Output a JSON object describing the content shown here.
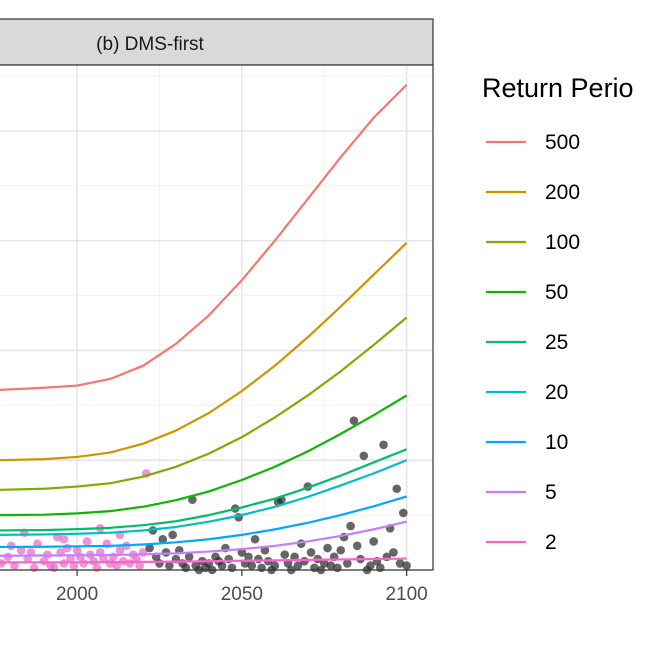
{
  "chart_data": {
    "type": "line",
    "facet_label": "(b) DMS-first",
    "x_ticks": [
      2000,
      2050,
      2100
    ],
    "xlim": [
      1976,
      2108
    ],
    "ylim": [
      0,
      23
    ],
    "grid": true,
    "legend": {
      "title": "Return Perio",
      "placement": "right"
    },
    "series": [
      {
        "name": "500",
        "color": "#F8766D",
        "x": [
          1976,
          1990,
          2000,
          2010,
          2020,
          2030,
          2040,
          2050,
          2060,
          2070,
          2080,
          2090,
          2100
        ],
        "y": [
          8.2,
          8.3,
          8.4,
          8.7,
          9.3,
          10.3,
          11.6,
          13.2,
          15.0,
          16.9,
          18.8,
          20.6,
          22.1
        ]
      },
      {
        "name": "200",
        "color": "#CD9600",
        "x": [
          1976,
          1990,
          2000,
          2010,
          2020,
          2030,
          2040,
          2050,
          2060,
          2070,
          2080,
          2090,
          2100
        ],
        "y": [
          5.0,
          5.05,
          5.15,
          5.35,
          5.75,
          6.35,
          7.15,
          8.15,
          9.3,
          10.6,
          12.0,
          13.45,
          14.9
        ]
      },
      {
        "name": "100",
        "color": "#7CAE00",
        "x": [
          1976,
          1990,
          2000,
          2010,
          2020,
          2030,
          2040,
          2050,
          2060,
          2070,
          2080,
          2090,
          2100
        ],
        "y": [
          3.65,
          3.7,
          3.8,
          3.95,
          4.25,
          4.7,
          5.3,
          6.05,
          6.95,
          7.95,
          9.05,
          10.25,
          11.5
        ]
      },
      {
        "name": "50",
        "color": "#0CB702",
        "x": [
          1976,
          1990,
          2000,
          2010,
          2020,
          2030,
          2040,
          2050,
          2060,
          2070,
          2080,
          2090,
          2100
        ],
        "y": [
          2.5,
          2.52,
          2.58,
          2.68,
          2.88,
          3.18,
          3.58,
          4.1,
          4.7,
          5.4,
          6.2,
          7.05,
          7.95
        ]
      },
      {
        "name": "25",
        "color": "#00BE67",
        "x": [
          1976,
          1990,
          2000,
          2010,
          2020,
          2030,
          2040,
          2050,
          2060,
          2070,
          2080,
          2090,
          2100
        ],
        "y": [
          1.8,
          1.82,
          1.86,
          1.92,
          2.04,
          2.22,
          2.5,
          2.85,
          3.25,
          3.75,
          4.3,
          4.9,
          5.5
        ]
      },
      {
        "name": "20",
        "color": "#00BFC4",
        "x": [
          1976,
          1990,
          2000,
          2010,
          2020,
          2030,
          2040,
          2050,
          2060,
          2070,
          2080,
          2090,
          2100
        ],
        "y": [
          1.6,
          1.62,
          1.65,
          1.7,
          1.8,
          1.96,
          2.2,
          2.5,
          2.88,
          3.33,
          3.85,
          4.4,
          5.0
        ]
      },
      {
        "name": "10",
        "color": "#00A9FF",
        "x": [
          1976,
          1990,
          2000,
          2010,
          2020,
          2030,
          2040,
          2050,
          2060,
          2070,
          2080,
          2090,
          2100
        ],
        "y": [
          1.05,
          1.06,
          1.08,
          1.1,
          1.16,
          1.26,
          1.4,
          1.6,
          1.85,
          2.15,
          2.5,
          2.9,
          3.35
        ]
      },
      {
        "name": "5",
        "color": "#C77CFF",
        "x": [
          1976,
          1990,
          2000,
          2010,
          2020,
          2030,
          2040,
          2050,
          2060,
          2070,
          2080,
          2090,
          2100
        ],
        "y": [
          0.65,
          0.66,
          0.67,
          0.68,
          0.71,
          0.76,
          0.84,
          0.95,
          1.1,
          1.3,
          1.55,
          1.85,
          2.2
        ]
      },
      {
        "name": "2",
        "color": "#FF61CC",
        "x": [
          1976,
          1990,
          2000,
          2010,
          2020,
          2030,
          2040,
          2050,
          2060,
          2070,
          2080,
          2090,
          2100
        ],
        "y": [
          0.35,
          0.35,
          0.35,
          0.36,
          0.37,
          0.38,
          0.4,
          0.42,
          0.44,
          0.46,
          0.48,
          0.5,
          0.52
        ]
      }
    ],
    "observed_pink": {
      "color": "#E86FC8",
      "points": [
        [
          1977,
          0.3
        ],
        [
          1979,
          0.6
        ],
        [
          1981,
          0.2
        ],
        [
          1983,
          0.9
        ],
        [
          1985,
          0.5
        ],
        [
          1987,
          0.1
        ],
        [
          1988,
          1.2
        ],
        [
          1990,
          0.4
        ],
        [
          1991,
          0.7
        ],
        [
          1992,
          0.2
        ],
        [
          1994,
          1.5
        ],
        [
          1995,
          0.8
        ],
        [
          1996,
          0.3
        ],
        [
          1997,
          1.0
        ],
        [
          1998,
          0.5
        ],
        [
          1999,
          0.2
        ],
        [
          2000,
          0.9
        ],
        [
          2001,
          0.6
        ],
        [
          2002,
          0.3
        ],
        [
          2003,
          1.3
        ],
        [
          2004,
          0.7
        ],
        [
          2005,
          0.4
        ],
        [
          2006,
          0.1
        ],
        [
          2007,
          0.8
        ],
        [
          2008,
          0.5
        ],
        [
          2009,
          1.2
        ],
        [
          2010,
          0.3
        ],
        [
          2011,
          0.6
        ],
        [
          2012,
          0.2
        ],
        [
          2013,
          0.9
        ],
        [
          2014,
          0.4
        ],
        [
          2015,
          1.1
        ],
        [
          2016,
          0.3
        ],
        [
          2017,
          0.7
        ],
        [
          2018,
          0.5
        ],
        [
          2019,
          0.2
        ],
        [
          2020,
          0.8
        ],
        [
          2021,
          4.4
        ],
        [
          1980,
          1.1
        ],
        [
          1986,
          0.8
        ],
        [
          1993,
          0.1
        ],
        [
          2007,
          1.9
        ],
        [
          2013,
          1.6
        ],
        [
          1984,
          1.7
        ],
        [
          1996,
          1.4
        ]
      ]
    },
    "observed_dark": {
      "color": "#2b2b2b",
      "points": [
        [
          2022,
          1.0
        ],
        [
          2023,
          1.8
        ],
        [
          2024,
          0.6
        ],
        [
          2025,
          0.3
        ],
        [
          2026,
          1.4
        ],
        [
          2027,
          0.8
        ],
        [
          2028,
          0.2
        ],
        [
          2029,
          1.6
        ],
        [
          2030,
          0.5
        ],
        [
          2031,
          0.9
        ],
        [
          2032,
          0.3
        ],
        [
          2033,
          0.1
        ],
        [
          2034,
          0.6
        ],
        [
          2035,
          3.2
        ],
        [
          2036,
          0.2
        ],
        [
          2037,
          0.0
        ],
        [
          2038,
          0.4
        ],
        [
          2039,
          0.1
        ],
        [
          2040,
          0.3
        ],
        [
          2041,
          0.0
        ],
        [
          2042,
          0.6
        ],
        [
          2043,
          0.4
        ],
        [
          2044,
          0.2
        ],
        [
          2045,
          1.0
        ],
        [
          2046,
          0.5
        ],
        [
          2047,
          0.1
        ],
        [
          2048,
          2.8
        ],
        [
          2049,
          2.4
        ],
        [
          2050,
          0.8
        ],
        [
          2051,
          0.3
        ],
        [
          2052,
          0.6
        ],
        [
          2053,
          0.2
        ],
        [
          2054,
          1.4
        ],
        [
          2055,
          0.5
        ],
        [
          2056,
          0.1
        ],
        [
          2057,
          0.9
        ],
        [
          2058,
          0.4
        ],
        [
          2059,
          0.0
        ],
        [
          2060,
          0.2
        ],
        [
          2061,
          3.1
        ],
        [
          2062,
          3.2
        ],
        [
          2063,
          0.7
        ],
        [
          2064,
          0.3
        ],
        [
          2065,
          0.0
        ],
        [
          2066,
          0.6
        ],
        [
          2067,
          0.2
        ],
        [
          2068,
          1.2
        ],
        [
          2069,
          0.4
        ],
        [
          2070,
          3.8
        ],
        [
          2071,
          0.8
        ],
        [
          2072,
          0.1
        ],
        [
          2073,
          0.5
        ],
        [
          2074,
          0.0
        ],
        [
          2075,
          0.3
        ],
        [
          2076,
          1.0
        ],
        [
          2077,
          0.2
        ],
        [
          2078,
          0.6
        ],
        [
          2079,
          0.1
        ],
        [
          2080,
          0.9
        ],
        [
          2081,
          1.5
        ],
        [
          2082,
          0.3
        ],
        [
          2083,
          2.0
        ],
        [
          2084,
          6.8
        ],
        [
          2085,
          1.1
        ],
        [
          2086,
          0.5
        ],
        [
          2087,
          5.2
        ],
        [
          2088,
          0.0
        ],
        [
          2089,
          0.2
        ],
        [
          2090,
          1.3
        ],
        [
          2091,
          0.4
        ],
        [
          2092,
          0.1
        ],
        [
          2093,
          5.7
        ],
        [
          2094,
          0.6
        ],
        [
          2095,
          1.9
        ],
        [
          2096,
          0.8
        ],
        [
          2097,
          3.7
        ],
        [
          2098,
          0.3
        ],
        [
          2099,
          2.6
        ],
        [
          2100,
          0.2
        ]
      ]
    }
  }
}
